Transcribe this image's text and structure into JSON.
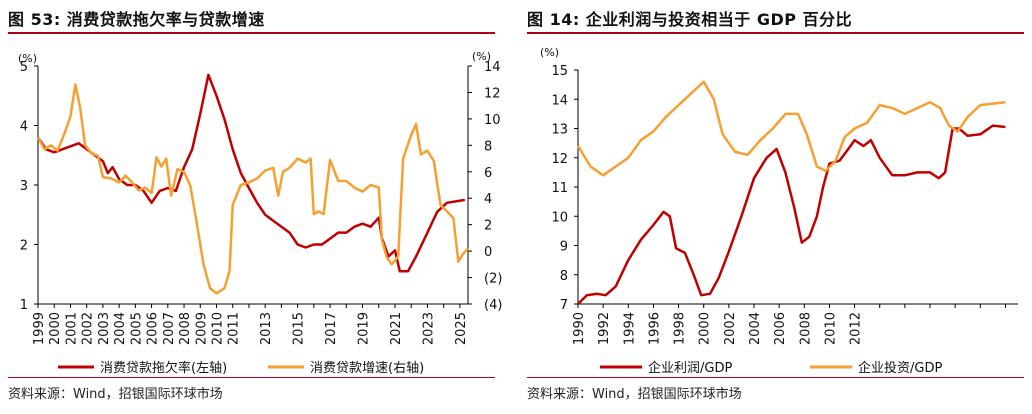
{
  "charts": [
    {
      "title": "图 53: 消费贷款拖欠率与贷款增速",
      "source": "资料来源：Wind，招银国际环球市场"
    },
    {
      "title": "图 14: 企业利润与投资相当于 GDP 百分比",
      "source": "资料来源：Wind，招银国际环球市场"
    }
  ],
  "chart_data": [
    {
      "type": "line",
      "title": "消费贷款拖欠率与贷款增速",
      "left_axis": {
        "unit": "(%)",
        "range": [
          1,
          5
        ],
        "ticks": [
          "5",
          "4",
          "3",
          "2",
          "1"
        ]
      },
      "right_axis": {
        "unit": "(%)",
        "range": [
          -4,
          14
        ],
        "ticks": [
          {
            "v": 14,
            "label": "14",
            "neg": false
          },
          {
            "v": 12,
            "label": "12",
            "neg": false
          },
          {
            "v": 10,
            "label": "10",
            "neg": false
          },
          {
            "v": 8,
            "label": "8",
            "neg": false
          },
          {
            "v": 6,
            "label": "6",
            "neg": false
          },
          {
            "v": 4,
            "label": "4",
            "neg": false
          },
          {
            "v": 2,
            "label": "2",
            "neg": false
          },
          {
            "v": 0,
            "label": "0",
            "neg": false
          },
          {
            "v": -2,
            "label": "(2)",
            "neg": true
          },
          {
            "v": -4,
            "label": "(4)",
            "neg": true
          }
        ]
      },
      "x_range": [
        1999,
        2025.5
      ],
      "x_ticks": [
        "1999",
        "2000",
        "2001",
        "2002",
        "2003",
        "2004",
        "2005",
        "2006",
        "2007",
        "2008",
        "2009",
        "2010",
        "2011",
        "2013",
        "2015",
        "2017",
        "2019",
        "2021",
        "2023",
        "2025"
      ],
      "x_tick_years": [
        1999,
        2000,
        2001,
        2002,
        2003,
        2004,
        2005,
        2006,
        2007,
        2008,
        2009,
        2010,
        2011,
        2013,
        2015,
        2017,
        2019,
        2021,
        2023,
        2025
      ],
      "series": [
        {
          "name": "消费贷款拖欠率(左轴)",
          "axis": "left",
          "color": "#c00000",
          "points": [
            [
              1999,
              3.8
            ],
            [
              1999.5,
              3.6
            ],
            [
              2000,
              3.55
            ],
            [
              2000.5,
              3.6
            ],
            [
              2001,
              3.65
            ],
            [
              2001.5,
              3.7
            ],
            [
              2002,
              3.6
            ],
            [
              2002.5,
              3.5
            ],
            [
              2003,
              3.4
            ],
            [
              2003.3,
              3.2
            ],
            [
              2003.6,
              3.3
            ],
            [
              2004,
              3.1
            ],
            [
              2004.5,
              3.0
            ],
            [
              2005,
              3.0
            ],
            [
              2005.5,
              2.9
            ],
            [
              2006,
              2.7
            ],
            [
              2006.5,
              2.9
            ],
            [
              2007,
              2.95
            ],
            [
              2007.5,
              2.9
            ],
            [
              2008,
              3.3
            ],
            [
              2008.5,
              3.6
            ],
            [
              2009,
              4.2
            ],
            [
              2009.5,
              4.85
            ],
            [
              2010,
              4.5
            ],
            [
              2010.5,
              4.1
            ],
            [
              2011,
              3.6
            ],
            [
              2011.5,
              3.2
            ],
            [
              2012,
              2.95
            ],
            [
              2012.5,
              2.7
            ],
            [
              2013,
              2.5
            ],
            [
              2013.5,
              2.4
            ],
            [
              2014,
              2.3
            ],
            [
              2014.5,
              2.2
            ],
            [
              2015,
              2.0
            ],
            [
              2015.5,
              1.95
            ],
            [
              2016,
              2.0
            ],
            [
              2016.5,
              2.0
            ],
            [
              2017,
              2.1
            ],
            [
              2017.5,
              2.2
            ],
            [
              2018,
              2.2
            ],
            [
              2018.5,
              2.3
            ],
            [
              2019,
              2.35
            ],
            [
              2019.5,
              2.3
            ],
            [
              2020,
              2.45
            ],
            [
              2020.2,
              2.1
            ],
            [
              2020.6,
              1.8
            ],
            [
              2021,
              1.9
            ],
            [
              2021.3,
              1.55
            ],
            [
              2021.8,
              1.55
            ],
            [
              2022.3,
              1.8
            ],
            [
              2023,
              2.2
            ],
            [
              2023.6,
              2.55
            ],
            [
              2024.2,
              2.7
            ],
            [
              2025.3,
              2.75
            ]
          ]
        },
        {
          "name": "消费贷款增速(右轴)",
          "axis": "right",
          "color": "#f5a030",
          "points": [
            [
              1999,
              8.6
            ],
            [
              1999.4,
              7.7
            ],
            [
              1999.8,
              8.0
            ],
            [
              2000.2,
              7.6
            ],
            [
              2000.6,
              8.8
            ],
            [
              2001,
              10.2
            ],
            [
              2001.3,
              12.6
            ],
            [
              2001.6,
              10.8
            ],
            [
              2001.9,
              8.0
            ],
            [
              2002.3,
              7.4
            ],
            [
              2002.7,
              7.2
            ],
            [
              2003,
              5.6
            ],
            [
              2003.5,
              5.5
            ],
            [
              2004,
              5.2
            ],
            [
              2004.4,
              5.7
            ],
            [
              2004.8,
              5.2
            ],
            [
              2005.2,
              4.6
            ],
            [
              2005.6,
              4.8
            ],
            [
              2006,
              4.4
            ],
            [
              2006.3,
              7.1
            ],
            [
              2006.6,
              6.4
            ],
            [
              2006.9,
              7.0
            ],
            [
              2007.2,
              4.2
            ],
            [
              2007.6,
              6.2
            ],
            [
              2008,
              6.0
            ],
            [
              2008.4,
              4.9
            ],
            [
              2008.8,
              2.0
            ],
            [
              2009.2,
              -1.0
            ],
            [
              2009.6,
              -2.8
            ],
            [
              2010,
              -3.2
            ],
            [
              2010.5,
              -2.8
            ],
            [
              2010.8,
              -1.5
            ],
            [
              2011,
              3.5
            ],
            [
              2011.5,
              5.0
            ],
            [
              2012,
              5.2
            ],
            [
              2012.5,
              5.5
            ],
            [
              2013,
              6.1
            ],
            [
              2013.5,
              6.3
            ],
            [
              2013.8,
              4.2
            ],
            [
              2014.1,
              6.0
            ],
            [
              2014.5,
              6.3
            ],
            [
              2015,
              7.0
            ],
            [
              2015.5,
              6.7
            ],
            [
              2015.8,
              7.0
            ],
            [
              2016,
              2.8
            ],
            [
              2016.3,
              3.0
            ],
            [
              2016.6,
              2.8
            ],
            [
              2017,
              6.9
            ],
            [
              2017.5,
              5.3
            ],
            [
              2018,
              5.3
            ],
            [
              2018.5,
              4.8
            ],
            [
              2019,
              4.5
            ],
            [
              2019.5,
              5.0
            ],
            [
              2020,
              4.8
            ],
            [
              2020.2,
              0.8
            ],
            [
              2020.5,
              -0.5
            ],
            [
              2020.8,
              -1.0
            ],
            [
              2021.2,
              -0.4
            ],
            [
              2021.5,
              7.0
            ],
            [
              2022,
              8.8
            ],
            [
              2022.3,
              9.6
            ],
            [
              2022.6,
              7.3
            ],
            [
              2023,
              7.6
            ],
            [
              2023.4,
              6.8
            ],
            [
              2023.8,
              3.5
            ],
            [
              2024.2,
              3.0
            ],
            [
              2024.6,
              2.5
            ],
            [
              2024.9,
              -0.8
            ],
            [
              2025.2,
              -0.2
            ],
            [
              2025.5,
              0.2
            ]
          ]
        }
      ]
    },
    {
      "type": "line",
      "title": "企业利润与投资相当于 GDP 百分比",
      "y_axis": {
        "unit": "(%)",
        "range": [
          7,
          15
        ],
        "ticks": [
          "15",
          "14",
          "13",
          "12",
          "11",
          "10",
          "9",
          "8",
          "7"
        ]
      },
      "x_range": [
        1990,
        2025
      ],
      "x_ticks": [
        "1990",
        "1992",
        "1994",
        "1996",
        "1998",
        "2000",
        "2002",
        "2004",
        "2006",
        "2008",
        "2010",
        "2012"
      ],
      "x_tick_years": [
        1990,
        1992,
        1994,
        1996,
        1998,
        2000,
        2002,
        2004,
        2006,
        2008,
        2010,
        2012
      ],
      "series": [
        {
          "name": "企业利润/GDP",
          "color": "#c00000",
          "points": [
            [
              1990,
              7.0
            ],
            [
              1990.7,
              7.3
            ],
            [
              1991.5,
              7.35
            ],
            [
              1992.2,
              7.3
            ],
            [
              1993,
              7.6
            ],
            [
              1994,
              8.5
            ],
            [
              1995,
              9.2
            ],
            [
              1996,
              9.7
            ],
            [
              1996.8,
              10.15
            ],
            [
              1997.3,
              10.0
            ],
            [
              1997.8,
              8.9
            ],
            [
              1998.5,
              8.75
            ],
            [
              1999.2,
              8.0
            ],
            [
              1999.8,
              7.3
            ],
            [
              2000.5,
              7.35
            ],
            [
              2001.2,
              7.9
            ],
            [
              2002,
              8.8
            ],
            [
              2003,
              10.0
            ],
            [
              2004,
              11.3
            ],
            [
              2005,
              12.0
            ],
            [
              2005.8,
              12.3
            ],
            [
              2006.5,
              11.5
            ],
            [
              2007.2,
              10.3
            ],
            [
              2007.8,
              9.1
            ],
            [
              2008.4,
              9.3
            ],
            [
              2009,
              10.0
            ],
            [
              2009.5,
              11.0
            ],
            [
              2010,
              11.8
            ],
            [
              2010.8,
              11.9
            ],
            [
              2011.5,
              12.3
            ],
            [
              2012,
              12.6
            ],
            [
              2012.7,
              12.4
            ],
            [
              2013.3,
              12.6
            ],
            [
              2014,
              12.0
            ],
            [
              2015,
              11.4
            ],
            [
              2016,
              11.4
            ],
            [
              2017,
              11.5
            ],
            [
              2018,
              11.5
            ],
            [
              2018.7,
              11.3
            ],
            [
              2019.2,
              11.5
            ],
            [
              2019.8,
              13.0
            ],
            [
              2020.3,
              13.0
            ],
            [
              2021,
              12.75
            ],
            [
              2022,
              12.8
            ],
            [
              2023,
              13.1
            ],
            [
              2024,
              13.05
            ]
          ]
        },
        {
          "name": "企业投资/GDP",
          "color": "#f5a030",
          "points": [
            [
              1990,
              12.4
            ],
            [
              1991,
              11.7
            ],
            [
              1992,
              11.4
            ],
            [
              1993,
              11.7
            ],
            [
              1994,
              12.0
            ],
            [
              1995,
              12.6
            ],
            [
              1996,
              12.9
            ],
            [
              1997,
              13.4
            ],
            [
              1998,
              13.8
            ],
            [
              1999,
              14.2
            ],
            [
              2000,
              14.6
            ],
            [
              2000.8,
              14.0
            ],
            [
              2001.5,
              12.8
            ],
            [
              2002.5,
              12.2
            ],
            [
              2003.5,
              12.1
            ],
            [
              2004.5,
              12.6
            ],
            [
              2005.5,
              13.0
            ],
            [
              2006.5,
              13.5
            ],
            [
              2007.5,
              13.5
            ],
            [
              2008.2,
              12.8
            ],
            [
              2009,
              11.7
            ],
            [
              2009.7,
              11.55
            ],
            [
              2010.5,
              11.9
            ],
            [
              2011.2,
              12.7
            ],
            [
              2012,
              13.0
            ],
            [
              2013,
              13.2
            ],
            [
              2014,
              13.8
            ],
            [
              2015,
              13.7
            ],
            [
              2016,
              13.5
            ],
            [
              2017,
              13.7
            ],
            [
              2018,
              13.9
            ],
            [
              2018.8,
              13.7
            ],
            [
              2019.5,
              13.1
            ],
            [
              2020.2,
              12.9
            ],
            [
              2021,
              13.4
            ],
            [
              2022,
              13.8
            ],
            [
              2023,
              13.85
            ],
            [
              2024,
              13.9
            ]
          ]
        }
      ]
    }
  ]
}
